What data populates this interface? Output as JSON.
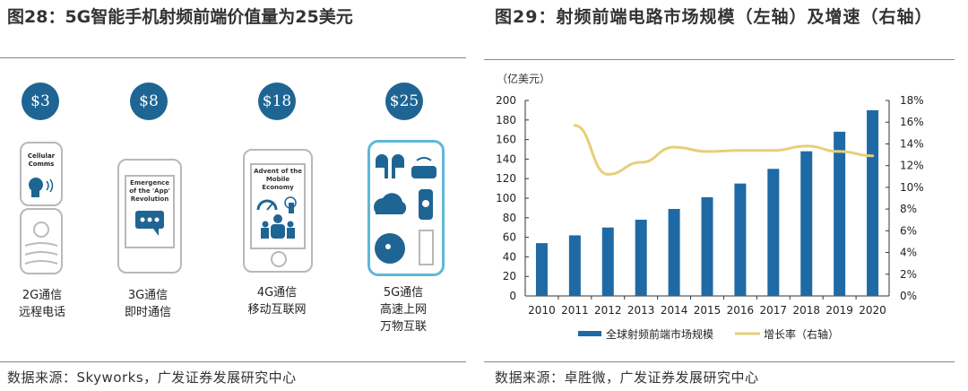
{
  "left": {
    "title": "图28：5G智能手机射频前端价值量为25美元",
    "generations": [
      {
        "price": "$3",
        "screen_text": "Cellular Comms",
        "label1": "2G通信",
        "label2": "远程电话",
        "label3": ""
      },
      {
        "price": "$8",
        "screen_text": "Emergence of the 'App' Revolution",
        "label1": "3G通信",
        "label2": "即时通信",
        "label3": ""
      },
      {
        "price": "$18",
        "screen_text": "Advent of the Mobile Economy",
        "label1": "4G通信",
        "label2": "移动互联网",
        "label3": ""
      },
      {
        "price": "$25",
        "screen_text": "",
        "label1": "5G通信",
        "label2": "高速上网",
        "label3": "万物互联"
      }
    ],
    "source": "数据来源：Skyworks，广发证券发展研究中心"
  },
  "right": {
    "title": "图29：射频前端电路市场规模（左轴）及增速（右轴）",
    "source": "数据来源：卓胜微，广发证券发展研究中心"
  },
  "colors": {
    "bar": "#1f6aa5",
    "line": "#e6cf7a",
    "circle": "#1f6593"
  },
  "chart_data": {
    "type": "bar+line",
    "unit_label": "（亿美元）",
    "categories": [
      "2010",
      "2011",
      "2012",
      "2013",
      "2014",
      "2015",
      "2016",
      "2017",
      "2018",
      "2019",
      "2020"
    ],
    "series": [
      {
        "name": "全球射频前端市场规模",
        "type": "bar",
        "axis": "left",
        "values": [
          54,
          62,
          70,
          78,
          89,
          101,
          115,
          130,
          148,
          168,
          190
        ]
      },
      {
        "name": "增长率（右轴）",
        "type": "line",
        "axis": "right",
        "values": [
          null,
          15.7,
          11.2,
          12.3,
          13.7,
          13.3,
          13.4,
          13.4,
          13.8,
          13.3,
          12.9
        ]
      }
    ],
    "ylim_left": [
      0,
      200
    ],
    "yticks_left": [
      "0",
      "20",
      "40",
      "60",
      "80",
      "100",
      "120",
      "140",
      "160",
      "180",
      "200"
    ],
    "ylim_right": [
      0,
      18
    ],
    "yticks_right": [
      "0%",
      "2%",
      "4%",
      "6%",
      "8%",
      "10%",
      "12%",
      "14%",
      "16%",
      "18%"
    ],
    "grid": false,
    "legend_position": "bottom"
  }
}
